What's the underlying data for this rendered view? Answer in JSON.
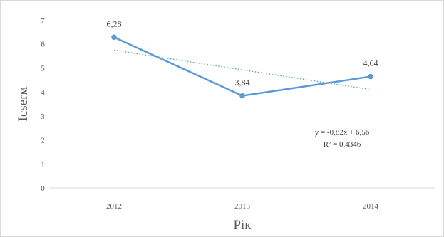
{
  "chart_data": {
    "type": "line",
    "categories": [
      "2012",
      "2013",
      "2014"
    ],
    "series": [
      {
        "values": [
          6.28,
          3.84,
          4.64
        ],
        "labels": [
          "6,28",
          "3,84",
          "4,64"
        ],
        "color": "#5b9bd5"
      }
    ],
    "trendline": {
      "type": "linear",
      "slope": -0.82,
      "intercept": 6.56,
      "equation": "y = -0,82x + 6,56",
      "r_squared": "R² = 0,4346",
      "style": "dotted",
      "color": "#5b9bd5"
    },
    "title": "",
    "xlabel": "Рік",
    "ylabel": "Ісserм",
    "ylim": [
      0,
      7
    ],
    "yticks": [
      "0",
      "1",
      "2",
      "3",
      "4",
      "5",
      "6",
      "7"
    ],
    "grid": false,
    "legend": "none",
    "colors": {
      "axis": "#d9d9d9",
      "frame": "#d9d9d9",
      "text": "#595959"
    }
  }
}
